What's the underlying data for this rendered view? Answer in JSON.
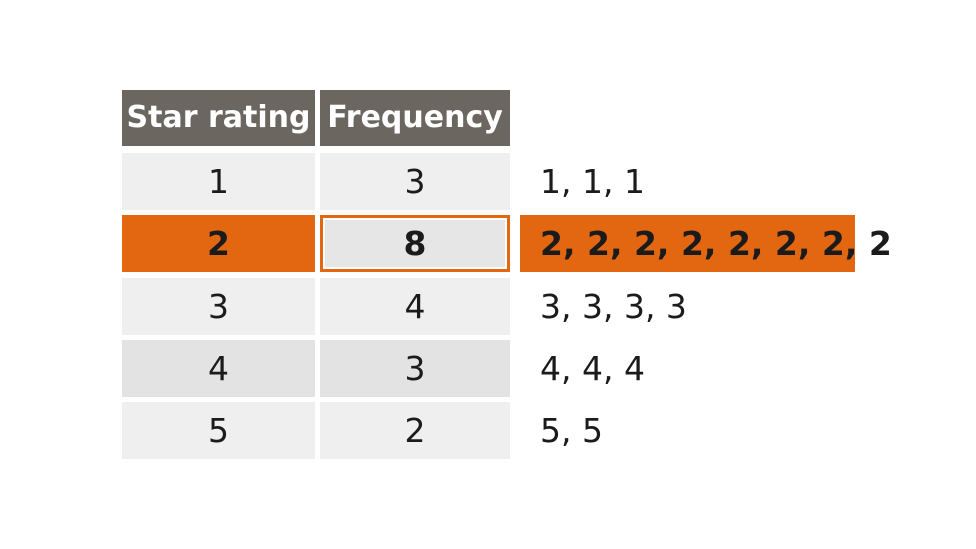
{
  "table": {
    "headers": [
      "Star rating",
      "Frequency"
    ],
    "rows": [
      {
        "rating": "1",
        "frequency": "3",
        "list": "1, 1, 1",
        "highlighted": false
      },
      {
        "rating": "2",
        "frequency": "8",
        "list": "2, 2, 2, 2, 2, 2, 2, 2",
        "highlighted": true
      },
      {
        "rating": "3",
        "frequency": "4",
        "list": "3, 3, 3, 3",
        "highlighted": false
      },
      {
        "rating": "4",
        "frequency": "3",
        "list": "4, 4, 4",
        "highlighted": false
      },
      {
        "rating": "5",
        "frequency": "2",
        "list": "5, 5",
        "highlighted": false
      }
    ]
  },
  "colors": {
    "header_bg": "#6b6760",
    "highlight": "#e36711",
    "row_light": "#efefef",
    "row_mid": "#e3e3e3"
  }
}
